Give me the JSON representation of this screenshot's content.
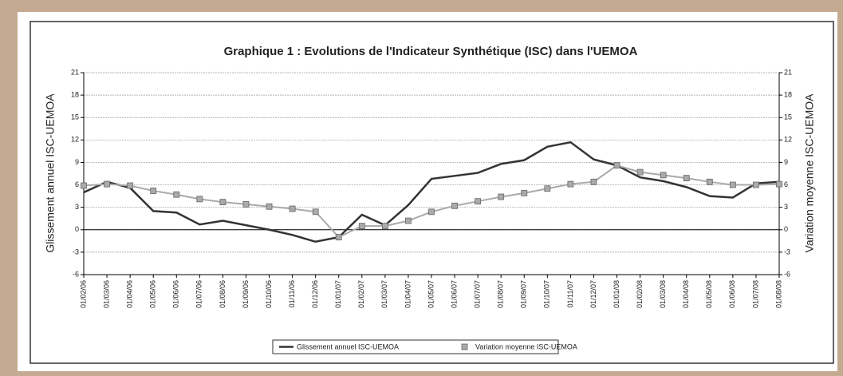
{
  "chart_data": {
    "type": "line",
    "title": "Graphique 1 : Evolutions de l'Indicateur Synthétique (ISC) dans l'UEMOA",
    "ylabel": "Glissement annuel ISC-UEMOA",
    "y2label": "Variation moyenne ISC-UEMOA",
    "categories": [
      "01/02/06",
      "01/03/06",
      "01/04/06",
      "01/05/06",
      "01/06/06",
      "01/07/06",
      "01/08/06",
      "01/09/06",
      "01/10/06",
      "01/11/06",
      "01/12/06",
      "01/01/07",
      "01/02/07",
      "01/03/07",
      "01/04/07",
      "01/05/07",
      "01/06/07",
      "01/07/07",
      "01/08/07",
      "01/09/07",
      "01/10/07",
      "01/11/07",
      "01/12/07",
      "01/01/08",
      "01/02/08",
      "01/03/08",
      "01/04/08",
      "01/05/08",
      "01/06/08",
      "01/07/08",
      "01/08/08"
    ],
    "series": [
      {
        "name": "Glissement annuel ISC-UEMOA",
        "color": "#333333",
        "axis": "y",
        "values": [
          5.0,
          6.4,
          5.6,
          2.5,
          2.3,
          0.7,
          1.2,
          0.6,
          0.0,
          -0.7,
          -1.6,
          -1.0,
          2.0,
          0.6,
          3.3,
          6.8,
          7.2,
          7.6,
          8.8,
          9.3,
          11.1,
          11.7,
          9.4,
          8.6,
          7.0,
          6.5,
          5.7,
          4.5,
          4.3,
          6.2,
          6.4
        ]
      },
      {
        "name": "Variation moyenne ISC-UEMOA",
        "color": "#aaaaaa",
        "axis": "y2",
        "values": [
          5.9,
          6.1,
          5.9,
          5.2,
          4.7,
          4.1,
          3.7,
          3.4,
          3.1,
          2.8,
          2.4,
          -1.0,
          0.5,
          0.5,
          1.2,
          2.4,
          3.2,
          3.8,
          4.4,
          4.9,
          5.5,
          6.1,
          6.4,
          8.6,
          7.7,
          7.3,
          6.9,
          6.4,
          6.0,
          6.0,
          6.1
        ]
      }
    ],
    "ylim": [
      -6,
      21
    ],
    "yticks": [
      -6,
      -3,
      0,
      3,
      6,
      9,
      12,
      15,
      18,
      21
    ],
    "y2lim": [
      -6,
      21
    ],
    "y2ticks": [
      -6,
      -3,
      0,
      3,
      6,
      9,
      12,
      15,
      18,
      21
    ],
    "grid": true,
    "legend": "bottom"
  }
}
